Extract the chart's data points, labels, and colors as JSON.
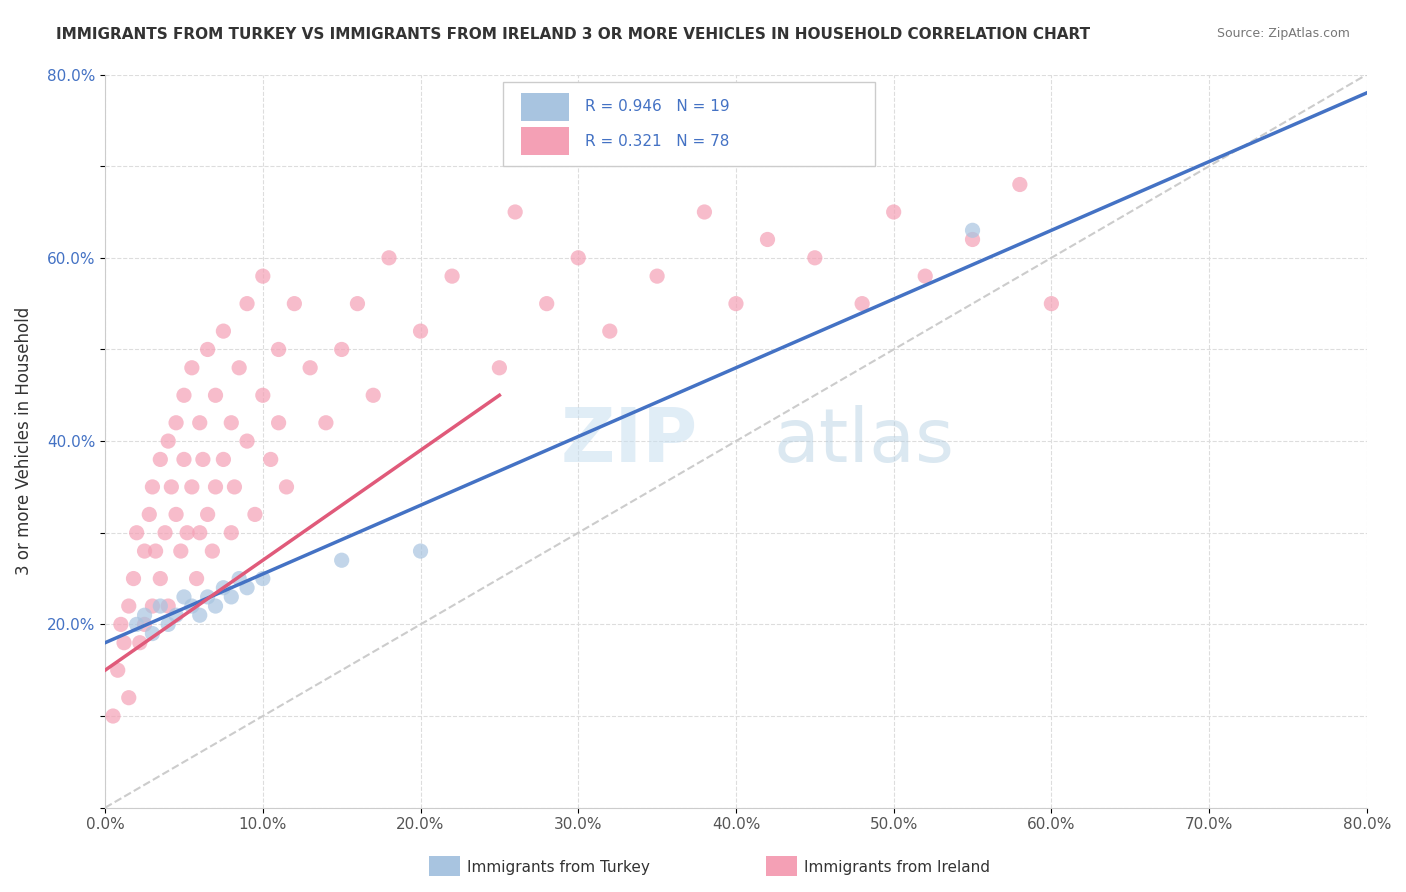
{
  "title": "IMMIGRANTS FROM TURKEY VS IMMIGRANTS FROM IRELAND 3 OR MORE VEHICLES IN HOUSEHOLD CORRELATION CHART",
  "source": "Source: ZipAtlas.com",
  "ylabel": "3 or more Vehicles in Household",
  "xlabel": "",
  "legend_entry1": "Immigrants from Turkey",
  "legend_entry2": "Immigrants from Ireland",
  "R1": 0.946,
  "N1": 19,
  "R2": 0.321,
  "N2": 78,
  "color_turkey": "#a8c4e0",
  "color_ireland": "#f4a0b5",
  "line_color_turkey": "#4472c4",
  "line_color_ireland": "#e05a7a",
  "watermark_zip": "ZIP",
  "watermark_atlas": "atlas",
  "xlim": [
    0.0,
    0.8
  ],
  "ylim": [
    0.0,
    0.8
  ],
  "xticks": [
    0.0,
    0.1,
    0.2,
    0.3,
    0.4,
    0.5,
    0.6,
    0.7,
    0.8
  ],
  "yticks": [
    0.0,
    0.1,
    0.2,
    0.3,
    0.4,
    0.5,
    0.6,
    0.7,
    0.8
  ],
  "xticklabels": [
    "0.0%",
    "10.0%",
    "20.0%",
    "30.0%",
    "40.0%",
    "50.0%",
    "60.0%",
    "70.0%",
    "80.0%"
  ],
  "yticklabels": [
    "",
    "",
    "20.0%",
    "",
    "40.0%",
    "",
    "60.0%",
    "",
    "80.0%"
  ],
  "turkey_x": [
    0.02,
    0.025,
    0.03,
    0.035,
    0.04,
    0.045,
    0.05,
    0.055,
    0.06,
    0.065,
    0.07,
    0.075,
    0.08,
    0.085,
    0.09,
    0.1,
    0.15,
    0.2,
    0.55
  ],
  "turkey_y": [
    0.2,
    0.21,
    0.19,
    0.22,
    0.2,
    0.21,
    0.23,
    0.22,
    0.21,
    0.23,
    0.22,
    0.24,
    0.23,
    0.25,
    0.24,
    0.25,
    0.27,
    0.28,
    0.63
  ],
  "ireland_x": [
    0.005,
    0.008,
    0.01,
    0.012,
    0.015,
    0.015,
    0.018,
    0.02,
    0.022,
    0.025,
    0.025,
    0.028,
    0.03,
    0.03,
    0.032,
    0.035,
    0.035,
    0.038,
    0.04,
    0.04,
    0.042,
    0.045,
    0.045,
    0.048,
    0.05,
    0.05,
    0.052,
    0.055,
    0.055,
    0.058,
    0.06,
    0.06,
    0.062,
    0.065,
    0.065,
    0.068,
    0.07,
    0.07,
    0.075,
    0.075,
    0.08,
    0.08,
    0.082,
    0.085,
    0.09,
    0.09,
    0.095,
    0.1,
    0.1,
    0.105,
    0.11,
    0.11,
    0.115,
    0.12,
    0.13,
    0.14,
    0.15,
    0.16,
    0.17,
    0.18,
    0.2,
    0.22,
    0.25,
    0.26,
    0.28,
    0.3,
    0.32,
    0.35,
    0.38,
    0.4,
    0.42,
    0.45,
    0.48,
    0.5,
    0.52,
    0.55,
    0.58,
    0.6
  ],
  "ireland_y": [
    0.1,
    0.15,
    0.2,
    0.18,
    0.22,
    0.12,
    0.25,
    0.3,
    0.18,
    0.28,
    0.2,
    0.32,
    0.35,
    0.22,
    0.28,
    0.38,
    0.25,
    0.3,
    0.4,
    0.22,
    0.35,
    0.32,
    0.42,
    0.28,
    0.38,
    0.45,
    0.3,
    0.35,
    0.48,
    0.25,
    0.42,
    0.3,
    0.38,
    0.32,
    0.5,
    0.28,
    0.45,
    0.35,
    0.38,
    0.52,
    0.3,
    0.42,
    0.35,
    0.48,
    0.4,
    0.55,
    0.32,
    0.45,
    0.58,
    0.38,
    0.42,
    0.5,
    0.35,
    0.55,
    0.48,
    0.42,
    0.5,
    0.55,
    0.45,
    0.6,
    0.52,
    0.58,
    0.48,
    0.65,
    0.55,
    0.6,
    0.52,
    0.58,
    0.65,
    0.55,
    0.62,
    0.6,
    0.55,
    0.65,
    0.58,
    0.62,
    0.68,
    0.55
  ]
}
